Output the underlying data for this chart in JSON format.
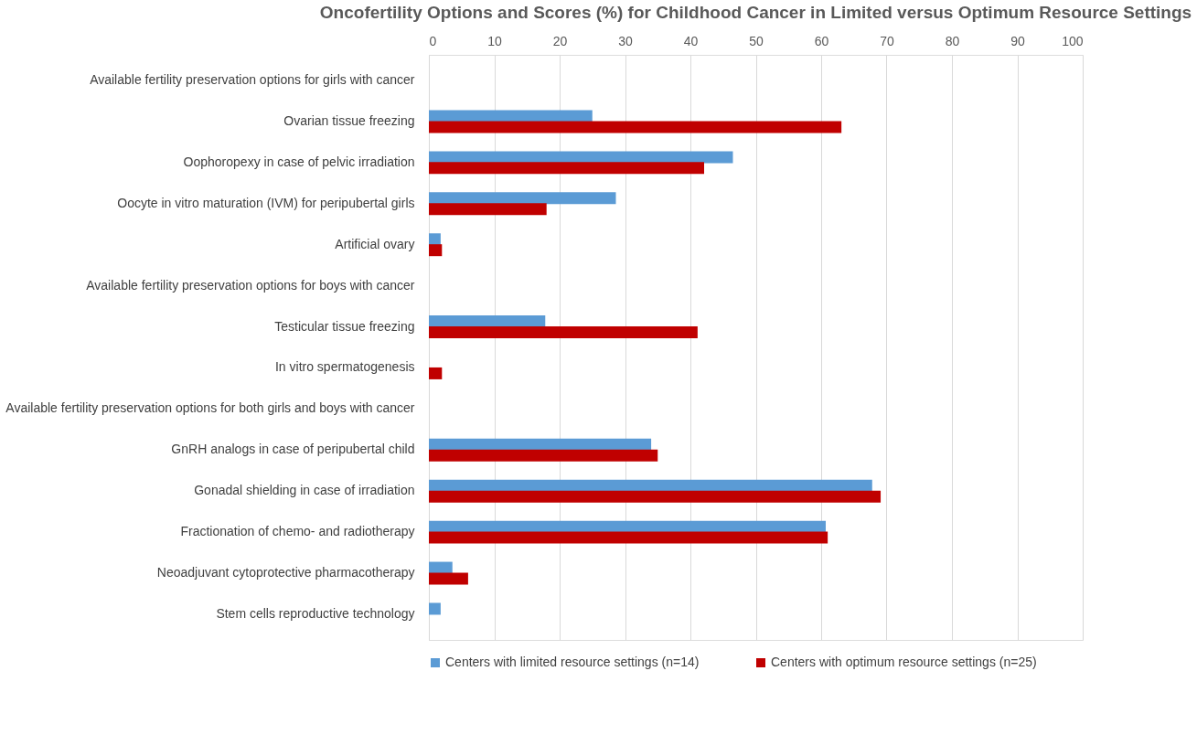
{
  "chart_data": {
    "type": "bar",
    "orientation": "horizontal",
    "title": "Oncofertility Options and Scores (%) for Childhood Cancer in Limited versus Optimum Resource Settings",
    "categories": [
      "Available fertility preservation options for girls with cancer",
      "Ovarian tissue freezing",
      "Oophoropexy in case of pelvic irradiation",
      "Oocyte in vitro maturation (IVM) for peripubertal girls",
      "Artificial ovary",
      "Available fertility preservation options for boys with cancer",
      "Testicular tissue freezing",
      "In vitro spermatogenesis",
      "Available fertility preservation options for both girls and boys with cancer",
      "GnRH analogs in case of peripubertal child",
      "Gonadal shielding in case of irradiation",
      "Fractionation of chemo- and radiotherapy",
      "Neoadjuvant cytoprotective pharmacotherapy",
      "Stem cells reproductive technology"
    ],
    "series": [
      {
        "name": "Centers with limited resource settings (n=14)",
        "color": "#5b9bd5",
        "values": [
          null,
          25,
          46.5,
          28.6,
          1.8,
          null,
          17.8,
          null,
          null,
          34,
          67.8,
          60.7,
          3.6,
          1.8
        ]
      },
      {
        "name": "Centers with optimum resource settings (n=25)",
        "color": "#c00000",
        "values": [
          null,
          63.1,
          42.1,
          18,
          2,
          null,
          41.1,
          2,
          null,
          35,
          69.1,
          61,
          6,
          null
        ]
      }
    ],
    "xlim": [
      0,
      100
    ],
    "xticks": [
      0,
      10,
      20,
      30,
      40,
      50,
      60,
      70,
      80,
      90,
      100
    ],
    "grid": "x",
    "legend": "bottom"
  }
}
